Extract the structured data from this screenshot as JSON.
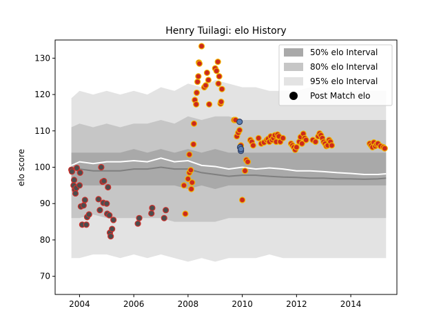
{
  "chart_data": {
    "type": "scatter",
    "title": "Henry Tuilagi: elo History",
    "xlabel": "",
    "ylabel": "elo score",
    "xlim": [
      2003.1,
      2015.7
    ],
    "ylim": [
      65,
      135
    ],
    "x_ticks": [
      2004,
      2006,
      2008,
      2010,
      2012,
      2014
    ],
    "y_ticks": [
      70,
      80,
      90,
      100,
      110,
      120,
      130
    ],
    "grid": false,
    "legend_position": "top-right",
    "legend": [
      {
        "label": "50% elo Interval",
        "swatch": "band",
        "color": "#a9a9a9"
      },
      {
        "label": "80% elo Interval",
        "swatch": "band",
        "color": "#c6c6c6"
      },
      {
        "label": "95% elo Interval",
        "swatch": "band",
        "color": "#e3e3e3"
      },
      {
        "label": "Post Match elo",
        "swatch": "marker",
        "color": "#000000"
      }
    ],
    "colors": {
      "band50": "#a9a9a9",
      "band80": "#c6c6c6",
      "band95": "#e3e3e3",
      "mean_line": "#ffffff",
      "median_line": "#7f7f7f",
      "point_fill_early": "#4d4d4d",
      "point_edge_early": "#d1302b",
      "point_fill_later": "#cc2a1c",
      "point_edge_later": "#f2b400",
      "point_fill_highlight": "#5b7fb2",
      "point_edge_highlight": "#2f3f66"
    },
    "bands": {
      "x": [
        2003.7,
        2004.0,
        2004.5,
        2005.0,
        2005.5,
        2006.0,
        2006.5,
        2007.0,
        2007.5,
        2008.0,
        2008.5,
        2009.0,
        2009.5,
        2010.0,
        2010.5,
        2011.0,
        2011.5,
        2012.0,
        2012.5,
        2013.0,
        2013.5,
        2014.0,
        2014.5,
        2015.0,
        2015.3
      ],
      "band95_upper": [
        119,
        121,
        120,
        121,
        120,
        121,
        120,
        122,
        121,
        123,
        122,
        124,
        123,
        122,
        122,
        121,
        121,
        121,
        122,
        121,
        121,
        121,
        121,
        121,
        121
      ],
      "band95_lower": [
        75,
        75,
        76,
        76,
        75,
        76,
        75,
        76,
        75,
        74,
        75,
        74,
        75,
        75,
        75,
        76,
        75,
        75,
        75,
        75,
        75,
        75,
        75,
        75,
        75
      ],
      "band80_upper": [
        111,
        112,
        111,
        112,
        111,
        112,
        112,
        113,
        112,
        114,
        113,
        114,
        114,
        113,
        113,
        113,
        113,
        113,
        113,
        113,
        113,
        113,
        113,
        113,
        113
      ],
      "band80_lower": [
        86,
        86,
        87,
        86,
        86,
        86,
        86,
        86,
        85,
        85,
        85,
        85,
        86,
        86,
        86,
        86,
        86,
        86,
        86,
        86,
        86,
        86,
        86,
        86,
        86
      ],
      "band50_upper": [
        104,
        104,
        104,
        104,
        104,
        105,
        104,
        105,
        104,
        105,
        104,
        105,
        104,
        104,
        104,
        104,
        104,
        104,
        104,
        104,
        104,
        104,
        104,
        104,
        104
      ],
      "band50_lower": [
        95,
        95,
        95,
        95,
        95,
        95,
        95,
        95,
        95,
        94,
        95,
        94,
        95,
        95,
        95,
        95,
        95,
        95,
        95,
        95,
        95,
        95,
        95,
        95,
        95
      ],
      "mean": [
        100.5,
        101.5,
        101.0,
        101.5,
        101.5,
        101.8,
        101.5,
        102.5,
        101.5,
        101.8,
        100.5,
        100.2,
        99.5,
        100.0,
        99.5,
        99.8,
        99.5,
        99.0,
        99.0,
        98.8,
        98.5,
        98.3,
        98.0,
        98.0,
        98.2
      ],
      "median": [
        99.5,
        99.5,
        99.0,
        99.0,
        99.0,
        99.5,
        99.5,
        100.0,
        99.5,
        99.5,
        98.5,
        98.0,
        97.5,
        97.8,
        97.8,
        97.5,
        97.3,
        97.2,
        97.0,
        97.0,
        96.8,
        96.8,
        96.7,
        96.8,
        97.0
      ]
    },
    "series": [
      {
        "group": "early",
        "x": [
          2003.7,
          2003.72,
          2003.78,
          2003.8,
          2003.83,
          2003.85,
          2003.88,
          2003.9,
          2004.0,
          2004.02,
          2004.05,
          2004.1,
          2004.15,
          2004.2,
          2004.25,
          2004.28,
          2004.35,
          2004.7,
          2004.75,
          2004.8,
          2004.85,
          2004.88,
          2004.9,
          2005.0,
          2005.02,
          2005.05,
          2005.1,
          2005.12,
          2005.15,
          2005.2,
          2005.25,
          2006.15,
          2006.2,
          2006.65,
          2006.68,
          2007.12,
          2007.18
        ],
        "y": [
          99.3,
          98.8,
          95.0,
          96.5,
          93.8,
          92.8,
          94.3,
          99.8,
          95.0,
          98.5,
          89.2,
          84.2,
          89.5,
          91.0,
          84.2,
          86.3,
          87.0,
          91.2,
          88.2,
          100.0,
          96.0,
          90.2,
          96.2,
          90.0,
          87.2,
          94.5,
          86.8,
          82.0,
          81.0,
          83.0,
          85.5,
          84.5,
          86.0,
          87.3,
          88.8,
          86.0,
          88.2
        ]
      },
      {
        "group": "later",
        "x": [
          2007.85,
          2007.9,
          2008.0,
          2008.05,
          2008.05,
          2008.1,
          2008.12,
          2008.15,
          2008.2,
          2008.22,
          2008.25,
          2008.3,
          2008.32,
          2008.35,
          2008.38,
          2008.4,
          2008.42,
          2008.5,
          2008.6,
          2008.65,
          2008.7,
          2008.75,
          2008.78,
          2009.0,
          2009.05,
          2009.1,
          2009.12,
          2009.15,
          2009.2,
          2009.22,
          2009.25,
          2009.7,
          2009.75,
          2009.8,
          2009.85,
          2009.9,
          2009.95,
          2010.0,
          2010.1,
          2010.15,
          2010.2,
          2010.3,
          2010.35,
          2010.4,
          2010.6,
          2010.7,
          2010.8,
          2010.9,
          2010.95,
          2011.0,
          2011.05,
          2011.1,
          2011.15,
          2011.2,
          2011.25,
          2011.3,
          2011.35,
          2011.4,
          2011.5,
          2011.8,
          2011.85,
          2011.9,
          2011.95,
          2012.0,
          2012.1,
          2012.15,
          2012.2,
          2012.25,
          2012.3,
          2012.35,
          2012.6,
          2012.7,
          2012.8,
          2012.85,
          2012.9,
          2012.95,
          2013.0,
          2013.05,
          2013.1,
          2013.15,
          2013.2,
          2013.25,
          2013.3,
          2014.7,
          2014.75,
          2014.8,
          2014.85,
          2014.9,
          2014.95,
          2015.0,
          2015.1,
          2015.2,
          2015.25
        ],
        "y": [
          95.0,
          87.2,
          96.8,
          98.5,
          103.5,
          99.2,
          94.0,
          95.8,
          106.3,
          112.0,
          118.5,
          117.3,
          120.5,
          123.5,
          125.0,
          128.8,
          128.5,
          133.3,
          122.0,
          122.5,
          126.0,
          124.0,
          117.3,
          127.2,
          126.5,
          129.0,
          123.0,
          125.0,
          117.5,
          118.0,
          121.5,
          113.0,
          113.0,
          108.5,
          109.5,
          110.2,
          106.0,
          91.0,
          99.0,
          102.0,
          101.5,
          107.5,
          107.0,
          106.0,
          108.0,
          106.5,
          106.8,
          107.5,
          107.8,
          107.0,
          108.5,
          107.5,
          108.0,
          108.8,
          107.0,
          109.0,
          108.5,
          107.0,
          108.0,
          106.5,
          106.0,
          105.5,
          104.8,
          105.5,
          107.0,
          108.3,
          106.5,
          109.2,
          108.0,
          107.5,
          107.5,
          107.0,
          108.5,
          109.3,
          108.8,
          108.0,
          107.0,
          106.5,
          105.8,
          106.0,
          107.5,
          107.0,
          106.0,
          106.5,
          106.0,
          105.5,
          106.8,
          105.8,
          106.3,
          106.5,
          105.8,
          105.5,
          105.2
        ]
      },
      {
        "group": "highlight",
        "x": [
          2009.9,
          2009.92,
          2009.95,
          2009.95
        ],
        "y": [
          112.5,
          105.5,
          104.5,
          105.0
        ]
      }
    ]
  }
}
